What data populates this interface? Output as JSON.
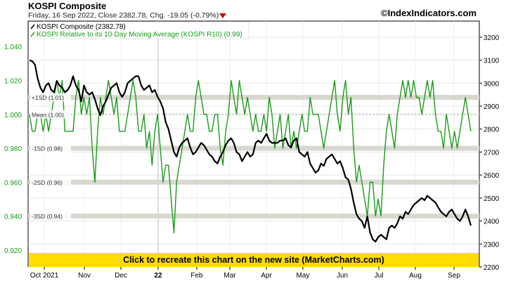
{
  "header": {
    "title": "KOSPI Composite",
    "subtitle_prefix": "Friday, 16 Sep 2022, Close 2382.78, Chg. -19.05 (-0.79%)",
    "change_direction_icon": "down-triangle-icon",
    "watermark": "©IndexIndicators.com"
  },
  "banner": {
    "text": "Click to recreate this chart on the new site (MarketCharts.com)",
    "bg": "#ffdd00"
  },
  "colors": {
    "price": "#000000",
    "ratio": "#1a9a1a",
    "band": "#d8d8d0",
    "down": "#cc0000"
  },
  "chart_data": {
    "type": "line",
    "x_tick_labels": [
      "Oct 2021",
      "Nov",
      "Dec",
      "22",
      "Feb",
      "Mar",
      "Apr",
      "May",
      "Jun",
      "Jul",
      "Aug",
      "Sep"
    ],
    "y_left_range": [
      0.91,
      1.055
    ],
    "y_left_ticks": [
      "0.920",
      "0.940",
      "0.960",
      "0.980",
      "1.000",
      "1.020",
      "1.040"
    ],
    "y_right_range": [
      2200,
      3270
    ],
    "y_right_ticks": [
      "2200",
      "2300",
      "2400",
      "2500",
      "2600",
      "2700",
      "2800",
      "2900",
      "3000",
      "3100",
      "3200"
    ],
    "grid": true,
    "legend_position": "top-left",
    "bands": [
      {
        "label": "+1SD (1.01)",
        "value": 1.01
      },
      {
        "label": "Mean (1.00)",
        "value": 1.0
      },
      {
        "label": "-1SD (0.98)",
        "value": 0.98
      },
      {
        "label": "-2SD (0.96)",
        "value": 0.96
      },
      {
        "label": "-3SD (0.94)",
        "value": 0.94
      }
    ],
    "series": [
      {
        "name": "KOSPI Composite (2382.78)",
        "axis": "right",
        "values": [
          3100,
          3095,
          3080,
          3020,
          2980,
          2960,
          2990,
          3000,
          2970,
          2960,
          3010,
          2990,
          2980,
          2960,
          2970,
          2990,
          3030,
          2990,
          2970,
          2920,
          2990,
          2960,
          2950,
          2960,
          2930,
          2890,
          2860,
          2900,
          2920,
          2950,
          2980,
          2990,
          3000,
          2960,
          2940,
          2960,
          3000,
          3010,
          3020,
          3030,
          3030,
          2990,
          2970,
          2980,
          2990,
          2960,
          2970,
          2940,
          2920,
          2890,
          2830,
          2800,
          2750,
          2700,
          2680,
          2720,
          2740,
          2750,
          2760,
          2720,
          2690,
          2700,
          2720,
          2740,
          2730,
          2710,
          2690,
          2680,
          2660,
          2650,
          2680,
          2700,
          2730,
          2750,
          2760,
          2740,
          2700,
          2690,
          2660,
          2680,
          2700,
          2680,
          2690,
          2740,
          2750,
          2740,
          2760,
          2780,
          2750,
          2740,
          2740,
          2740,
          2750,
          2750,
          2760,
          2730,
          2720,
          2750,
          2760,
          2700,
          2690,
          2680,
          2700,
          2650,
          2630,
          2610,
          2620,
          2650,
          2640,
          2670,
          2680,
          2690,
          2670,
          2650,
          2660,
          2630,
          2590,
          2580,
          2540,
          2480,
          2430,
          2410,
          2400,
          2370,
          2420,
          2350,
          2320,
          2310,
          2330,
          2340,
          2330,
          2320,
          2370,
          2380,
          2370,
          2390,
          2420,
          2410,
          2440,
          2430,
          2450,
          2470,
          2480,
          2490,
          2500,
          2490,
          2510,
          2500,
          2490,
          2480,
          2460,
          2440,
          2430,
          2420,
          2440,
          2450,
          2430,
          2410,
          2400,
          2420,
          2450,
          2420,
          2380
        ]
      },
      {
        "name": "KOSPI Relative to its 10-Day Moving Average (KOSPI R10) (0.99)",
        "axis": "left",
        "values": [
          1.0,
          0.99,
          0.99,
          1.0,
          1.0,
          0.99,
          1.0,
          0.99,
          1.0,
          1.01,
          1.02,
          1.01,
          1.02,
          0.99,
          0.99,
          0.99,
          0.99,
          1.01,
          1.02,
          1.0,
          1.01,
          1.0,
          1.01,
          0.98,
          0.96,
          0.99,
          1.01,
          1.0,
          1.01,
          1.02,
          1.01,
          1.0,
          1.01,
          0.99,
          0.99,
          0.99,
          1.0,
          1.01,
          1.02,
          1.01,
          0.99,
          0.99,
          1.0,
          0.98,
          0.99,
          0.97,
          0.99,
          1.0,
          0.98,
          0.96,
          0.97,
          0.97,
          0.95,
          0.93,
          0.96,
          0.97,
          0.98,
          0.99,
          1.0,
          0.99,
          0.99,
          1.01,
          1.02,
          1.01,
          1.0,
          1.0,
          0.99,
          0.99,
          1.0,
          1.0,
          0.98,
          0.97,
          0.99,
          1.0,
          1.02,
          1.01,
          1.0,
          1.02,
          1.01,
          1.0,
          1.01,
          1.0,
          0.99,
          1.0,
          0.99,
          0.99,
          1.0,
          0.99,
          1.01,
          1.0,
          0.98,
          0.99,
          1.0,
          0.98,
          0.99,
          1.0,
          0.98,
          0.99,
          0.98,
          0.99,
          1.0,
          0.99,
          0.99,
          1.01,
          1.0,
          1.0,
          1.0,
          0.99,
          0.98,
          0.99,
          1.0,
          1.01,
          1.02,
          1.0,
          0.99,
          1.01,
          1.02,
          1.0,
          1.01,
          0.98,
          0.96,
          0.97,
          0.96,
          0.95,
          0.94,
          0.96,
          0.96,
          0.94,
          0.95,
          0.94,
          0.97,
          0.99,
          1.0,
          0.99,
          0.98,
          1.0,
          1.01,
          1.02,
          1.01,
          1.02,
          1.01,
          1.02,
          1.01,
          1.01,
          1.0,
          1.01,
          1.02,
          1.01,
          1.02,
          1.0,
          0.99,
          0.99,
          0.98,
          1.0,
          0.99,
          0.98,
          0.99,
          0.98,
          0.99,
          1.0,
          1.01,
          1.0,
          0.99
        ]
      }
    ]
  }
}
